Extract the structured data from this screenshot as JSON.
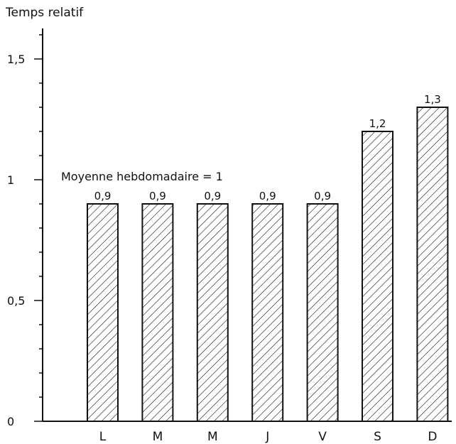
{
  "chart_data": {
    "type": "bar",
    "ylabel": "Temps relatif",
    "annotation": "Moyenne hebdomadaire = 1",
    "categories": [
      "L",
      "M",
      "M",
      "J",
      "V",
      "S",
      "D"
    ],
    "values": [
      0.9,
      0.9,
      0.9,
      0.9,
      0.9,
      1.2,
      1.3
    ],
    "data_labels": [
      "0,9",
      "0,9",
      "0,9",
      "0,9",
      "0,9",
      "1,2",
      "1,3"
    ],
    "y_ticks": [
      {
        "value": 0,
        "label": "0"
      },
      {
        "value": 0.5,
        "label": "0,5"
      },
      {
        "value": 1,
        "label": "1"
      },
      {
        "value": 1.5,
        "label": "1,5"
      }
    ],
    "ylim": [
      0,
      1.7
    ],
    "grid": false,
    "bar_fill": "hatched",
    "colors": {
      "ink": "#111111",
      "background": "#ffffff"
    }
  }
}
